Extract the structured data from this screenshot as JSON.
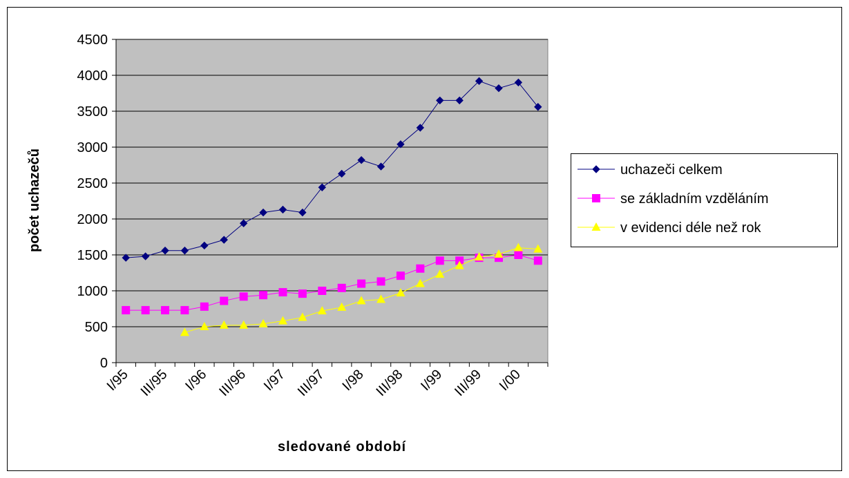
{
  "chart_data": {
    "type": "line",
    "x_label": "sledované období",
    "y_label": "počet uchazečů",
    "categories": [
      "I/95",
      null,
      "III/95",
      null,
      "I/96",
      null,
      "III/96",
      null,
      "I/97",
      null,
      "III/97",
      null,
      "I/98",
      null,
      "III/98",
      null,
      "I/99",
      null,
      "III/99",
      null,
      "I/00",
      null
    ],
    "ylim": [
      0,
      4500
    ],
    "yticks": [
      0,
      500,
      1000,
      1500,
      2000,
      2500,
      3000,
      3500,
      4000,
      4500
    ],
    "grid": true,
    "legend": "right",
    "series": [
      {
        "name": "uchazeči celkem",
        "color": "#000080",
        "marker": "diamond",
        "values": [
          1460,
          1480,
          1560,
          1560,
          1630,
          1710,
          1940,
          2090,
          2130,
          2090,
          2440,
          2630,
          2820,
          2730,
          3040,
          3270,
          3650,
          3650,
          3920,
          3820,
          3900,
          3560
        ]
      },
      {
        "name": "se základním vzděláním",
        "color": "#ff00ff",
        "marker": "square",
        "values": [
          730,
          730,
          730,
          730,
          780,
          860,
          920,
          940,
          980,
          960,
          1000,
          1040,
          1100,
          1130,
          1210,
          1310,
          1420,
          1420,
          1460,
          1460,
          1500,
          1420
        ]
      },
      {
        "name": "v evidenci déle než rok",
        "color": "#ffff00",
        "marker": "triangle",
        "values": [
          null,
          null,
          null,
          420,
          500,
          520,
          520,
          540,
          580,
          630,
          720,
          770,
          860,
          880,
          970,
          1100,
          1230,
          1350,
          1470,
          1510,
          1600,
          1580
        ]
      }
    ]
  }
}
